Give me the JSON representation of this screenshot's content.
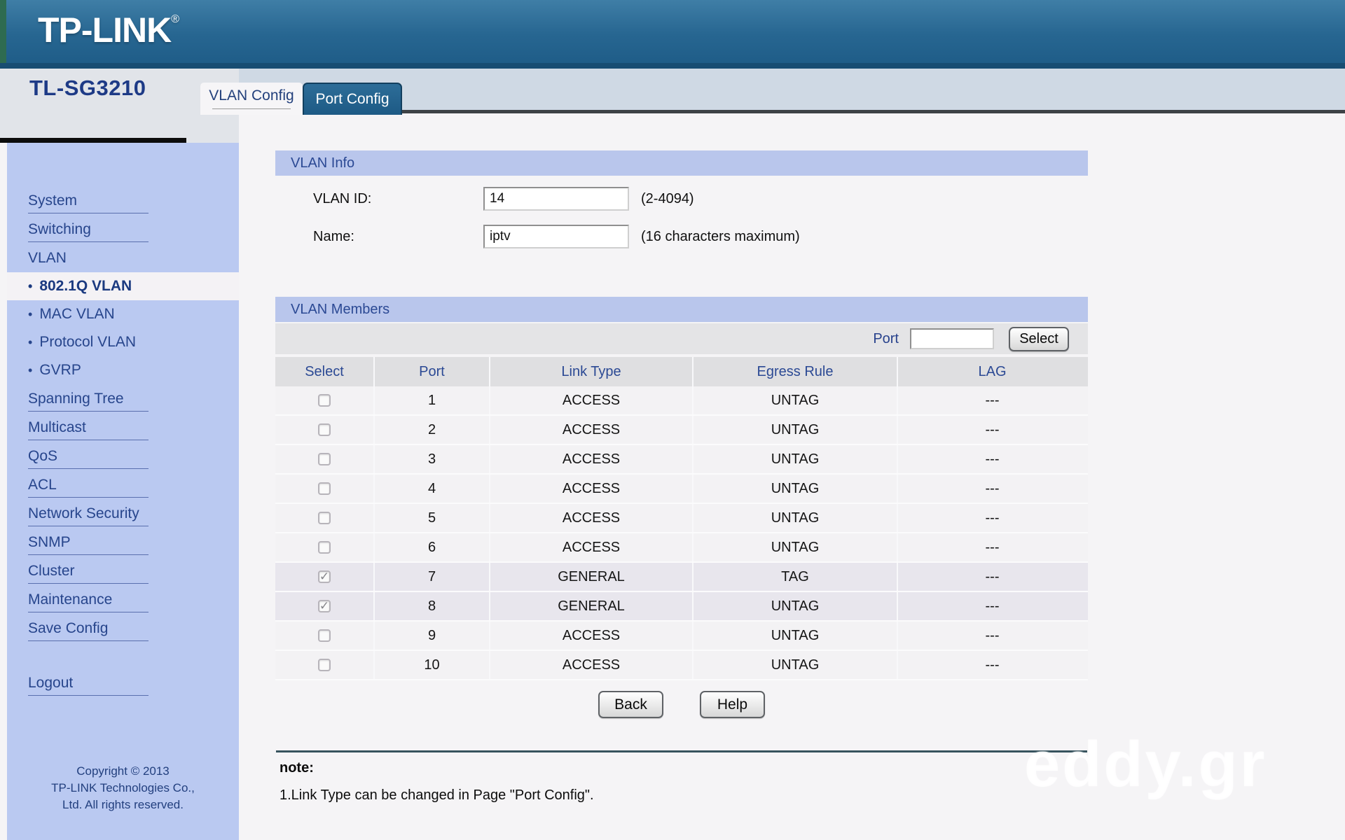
{
  "header": {
    "brand": "TP-LINK",
    "registered": "®"
  },
  "device_model": "TL-SG3210",
  "tabs": {
    "vlan_config": "VLAN Config",
    "port_config": "Port Config"
  },
  "sidebar": {
    "items": [
      {
        "label": "System",
        "type": "top",
        "underline": true,
        "active": false
      },
      {
        "label": "Switching",
        "type": "top",
        "underline": true,
        "active": false
      },
      {
        "label": "VLAN",
        "type": "top",
        "underline": false,
        "active": false
      },
      {
        "label": "802.1Q VLAN",
        "type": "sub",
        "underline": false,
        "active": true
      },
      {
        "label": "MAC VLAN",
        "type": "sub",
        "underline": false,
        "active": false
      },
      {
        "label": "Protocol VLAN",
        "type": "sub",
        "underline": false,
        "active": false
      },
      {
        "label": "GVRP",
        "type": "sub",
        "underline": false,
        "active": false
      },
      {
        "label": "Spanning Tree",
        "type": "top",
        "underline": true,
        "active": false
      },
      {
        "label": "Multicast",
        "type": "top",
        "underline": true,
        "active": false
      },
      {
        "label": "QoS",
        "type": "top",
        "underline": true,
        "active": false
      },
      {
        "label": "ACL",
        "type": "top",
        "underline": true,
        "active": false
      },
      {
        "label": "Network Security",
        "type": "top",
        "underline": true,
        "active": false
      },
      {
        "label": "SNMP",
        "type": "top",
        "underline": true,
        "active": false
      },
      {
        "label": "Cluster",
        "type": "top",
        "underline": true,
        "active": false
      },
      {
        "label": "Maintenance",
        "type": "top",
        "underline": true,
        "active": false
      },
      {
        "label": "Save Config",
        "type": "top",
        "underline": true,
        "active": false
      },
      {
        "label": "Logout",
        "type": "logout",
        "underline": true,
        "active": false
      }
    ],
    "footer_lines": [
      "Copyright © 2013",
      "TP-LINK Technologies Co.,",
      "Ltd. All rights reserved."
    ]
  },
  "vlan_info": {
    "title": "VLAN Info",
    "vlan_id": {
      "label": "VLAN ID:",
      "value": "14",
      "hint": "(2-4094)"
    },
    "name": {
      "label": "Name:",
      "value": "iptv",
      "hint": "(16 characters maximum)"
    }
  },
  "vlan_members": {
    "title": "VLAN Members",
    "port_filter": {
      "label": "Port",
      "value": "",
      "button": "Select"
    },
    "columns": [
      "Select",
      "Port",
      "Link Type",
      "Egress Rule",
      "LAG"
    ],
    "rows": [
      {
        "checked": false,
        "port": "1",
        "link_type": "ACCESS",
        "egress": "UNTAG",
        "lag": "---"
      },
      {
        "checked": false,
        "port": "2",
        "link_type": "ACCESS",
        "egress": "UNTAG",
        "lag": "---"
      },
      {
        "checked": false,
        "port": "3",
        "link_type": "ACCESS",
        "egress": "UNTAG",
        "lag": "---"
      },
      {
        "checked": false,
        "port": "4",
        "link_type": "ACCESS",
        "egress": "UNTAG",
        "lag": "---"
      },
      {
        "checked": false,
        "port": "5",
        "link_type": "ACCESS",
        "egress": "UNTAG",
        "lag": "---"
      },
      {
        "checked": false,
        "port": "6",
        "link_type": "ACCESS",
        "egress": "UNTAG",
        "lag": "---"
      },
      {
        "checked": true,
        "port": "7",
        "link_type": "GENERAL",
        "egress": "TAG",
        "lag": "---"
      },
      {
        "checked": true,
        "port": "8",
        "link_type": "GENERAL",
        "egress": "UNTAG",
        "lag": "---"
      },
      {
        "checked": false,
        "port": "9",
        "link_type": "ACCESS",
        "egress": "UNTAG",
        "lag": "---"
      },
      {
        "checked": false,
        "port": "10",
        "link_type": "ACCESS",
        "egress": "UNTAG",
        "lag": "---"
      }
    ]
  },
  "actions": {
    "back": "Back",
    "help": "Help"
  },
  "note": {
    "title": "note:",
    "items": [
      "1.Link Type can be changed in Page \"Port Config\"."
    ]
  },
  "watermark": "eddy.gr",
  "colors": {
    "header_blue": "#276691",
    "sidebar_bg": "#bac9f1",
    "section_bar": "#b9c6ec",
    "accent_text": "#2b4994",
    "tab_active_bg": "#f6f5f7",
    "tab_inactive_bg": "#1d5a85"
  }
}
